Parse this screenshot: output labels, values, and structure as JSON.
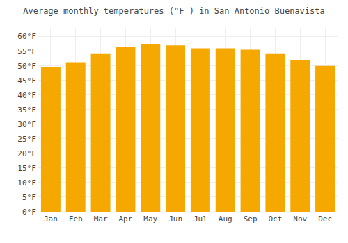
{
  "chart_data": {
    "type": "bar",
    "title": "Average monthly temperatures (°F ) in San Antonio Buenavista",
    "categories": [
      "Jan",
      "Feb",
      "Mar",
      "Apr",
      "May",
      "Jun",
      "Jul",
      "Aug",
      "Sep",
      "Oct",
      "Nov",
      "Dec"
    ],
    "values": [
      49.5,
      51.0,
      54.0,
      56.5,
      57.5,
      57.0,
      56.0,
      56.0,
      55.5,
      54.0,
      52.0,
      50.0
    ],
    "color": "#F5A800",
    "ylim": [
      0,
      63
    ],
    "yticks": [
      {
        "value": 0,
        "label": "0°F"
      },
      {
        "value": 5,
        "label": "5°F"
      },
      {
        "value": 10,
        "label": "10°F"
      },
      {
        "value": 15,
        "label": "15°F"
      },
      {
        "value": 20,
        "label": "20°F"
      },
      {
        "value": 25,
        "label": "25°F"
      },
      {
        "value": 30,
        "label": "30°F"
      },
      {
        "value": 35,
        "label": "35°F"
      },
      {
        "value": 40,
        "label": "40°F"
      },
      {
        "value": 45,
        "label": "45°F"
      },
      {
        "value": 50,
        "label": "50°F"
      },
      {
        "value": 55,
        "label": "55°F"
      },
      {
        "value": 60,
        "label": "60°F"
      }
    ],
    "grid": true
  }
}
